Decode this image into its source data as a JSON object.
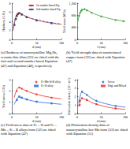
{
  "chart_data": [
    {
      "type": "scatter",
      "title": "(a) Hardness of nanocrystalline Mg₃Sb₂ ceramic thin films [25] are fitted with the first and second number based Equation (47) and Equation (48), respectively",
      "x_label": "d (nm)",
      "y_label": "Hardness (GPa)",
      "xlim": [
        0,
        100
      ],
      "xticks": [
        0,
        50,
        100
      ],
      "ylim": [
        0,
        8
      ],
      "yticks": [
        0,
        2,
        4,
        6,
        8
      ],
      "legend": "upper right",
      "series": [
        {
          "type": "scatter",
          "color": "#000000",
          "marker": "square",
          "x": [
            5,
            8,
            10,
            12,
            15,
            20,
            30,
            50,
            80
          ],
          "values": [
            3.2,
            4.5,
            5.2,
            5.6,
            5.8,
            5.5,
            4.9,
            4.2,
            3.6
          ]
        },
        {
          "name": "1st number based Eq.",
          "type": "line",
          "color": "#e8291c",
          "line_style": "solid",
          "x": [
            3,
            5,
            8,
            10,
            15,
            20,
            30,
            40,
            60,
            80,
            100
          ],
          "values": [
            2.0,
            3.4,
            4.8,
            5.4,
            5.8,
            5.6,
            5.0,
            4.6,
            4.0,
            3.6,
            3.3
          ]
        },
        {
          "name": "2nd number based Eq.",
          "type": "line",
          "color": "#1f5fd6",
          "line_style": "dashed",
          "x": [
            3,
            5,
            8,
            10,
            15,
            20,
            30,
            40,
            60,
            80,
            100
          ],
          "values": [
            2.4,
            3.7,
            5.0,
            5.5,
            5.7,
            5.5,
            5.0,
            4.6,
            4.1,
            3.7,
            3.4
          ]
        }
      ]
    },
    {
      "type": "scatter",
      "title": "(b) Yield strength data of nanotwinned copper from [32] are fitted with Equation (47)",
      "x_label": "λ (nm)",
      "y_label": "Yield stress (MPa)",
      "xlim": [
        0,
        100
      ],
      "xticks": [
        0,
        50,
        100
      ],
      "ylim": [
        0,
        1200
      ],
      "yticks": [
        0,
        400,
        800,
        1200
      ],
      "series": [
        {
          "type": "scatter",
          "color": "#2ca02c",
          "marker": "circle",
          "x": [
            4,
            6,
            8,
            10,
            15,
            20,
            30,
            50,
            80,
            96
          ],
          "values": [
            780,
            880,
            940,
            980,
            1000,
            960,
            880,
            760,
            640,
            600
          ]
        },
        {
          "type": "line",
          "color": "#2ca02c",
          "line_style": "solid",
          "x": [
            2,
            4,
            8,
            12,
            16,
            20,
            30,
            40,
            60,
            80,
            100
          ],
          "values": [
            600,
            790,
            940,
            990,
            1000,
            970,
            890,
            820,
            720,
            650,
            600
          ]
        }
      ]
    },
    {
      "type": "scatter",
      "title": "(c) Yield stress data of Fe – Si and Fe – Mn – Si – B alloys from [32] are fitted with Equation (47)",
      "x_label": "d (nm)",
      "y_label": "Yield stress (GPa)",
      "xlim": [
        0,
        100
      ],
      "xticks": [
        0,
        50,
        100
      ],
      "ylim": [
        0,
        3
      ],
      "yticks": [
        0,
        1,
        2,
        3
      ],
      "legend": "upper right",
      "series": [
        {
          "name": "Fe-Mn-Si-B alloy",
          "type": "scatter",
          "color": "#e8291c",
          "marker": "circle",
          "x": [
            10,
            15,
            20,
            30,
            50,
            80
          ],
          "values": [
            2.0,
            2.3,
            2.2,
            2.0,
            1.7,
            1.4
          ]
        },
        {
          "name": "Fe-Si alloy",
          "type": "scatter",
          "color": "#1f5fd6",
          "marker": "square",
          "x": [
            10,
            15,
            20,
            30,
            50,
            80
          ],
          "values": [
            1.2,
            1.5,
            1.4,
            1.25,
            1.05,
            0.9
          ]
        },
        {
          "type": "line",
          "color": "#e8291c",
          "line_style": "solid",
          "x": [
            5,
            10,
            15,
            20,
            30,
            50,
            80,
            100
          ],
          "values": [
            1.4,
            2.1,
            2.28,
            2.2,
            2.0,
            1.7,
            1.42,
            1.3
          ]
        },
        {
          "type": "line",
          "color": "#1f5fd6",
          "line_style": "solid",
          "x": [
            5,
            10,
            15,
            20,
            30,
            50,
            80,
            100
          ],
          "values": [
            0.8,
            1.25,
            1.45,
            1.4,
            1.25,
            1.05,
            0.9,
            0.82
          ]
        }
      ]
    },
    {
      "type": "scatter",
      "title": "(d) Dislocation density data of nanocrystalline bcc Mo from [33] are fitted with Equation (51)",
      "x_label": "d (nm)",
      "y_label": "Dislocation density (10¹⁵ m⁻²)",
      "xlim": [
        0,
        100
      ],
      "xticks": [
        0,
        50,
        100
      ],
      "ylim": [
        0,
        4
      ],
      "yticks": [
        0,
        1,
        2,
        3,
        4
      ],
      "legend": "upper right",
      "series": [
        {
          "name": "Screw",
          "type": "scatter",
          "color": "#1f5fd6",
          "marker": "circle",
          "x": [
            5,
            10,
            20,
            40,
            80
          ],
          "values": [
            1.5,
            2.6,
            2.2,
            1.5,
            0.9
          ]
        },
        {
          "name": "Edge and Mixed",
          "type": "scatter",
          "color": "#e8291c",
          "marker": "square",
          "x": [
            5,
            10,
            20,
            40,
            80
          ],
          "values": [
            1.0,
            1.8,
            1.6,
            1.1,
            0.6
          ]
        },
        {
          "type": "line",
          "color": "#1f5fd6",
          "line_style": "solid",
          "x": [
            3,
            6,
            10,
            15,
            20,
            30,
            40,
            60,
            80,
            100
          ],
          "values": [
            1.2,
            2.0,
            2.5,
            2.4,
            2.2,
            1.8,
            1.5,
            1.15,
            0.9,
            0.75
          ]
        },
        {
          "type": "line",
          "color": "#e8291c",
          "line_style": "solid",
          "x": [
            3,
            6,
            10,
            15,
            20,
            30,
            40,
            60,
            80,
            100
          ],
          "values": [
            0.8,
            1.35,
            1.75,
            1.7,
            1.6,
            1.3,
            1.1,
            0.8,
            0.6,
            0.5
          ]
        }
      ]
    }
  ]
}
